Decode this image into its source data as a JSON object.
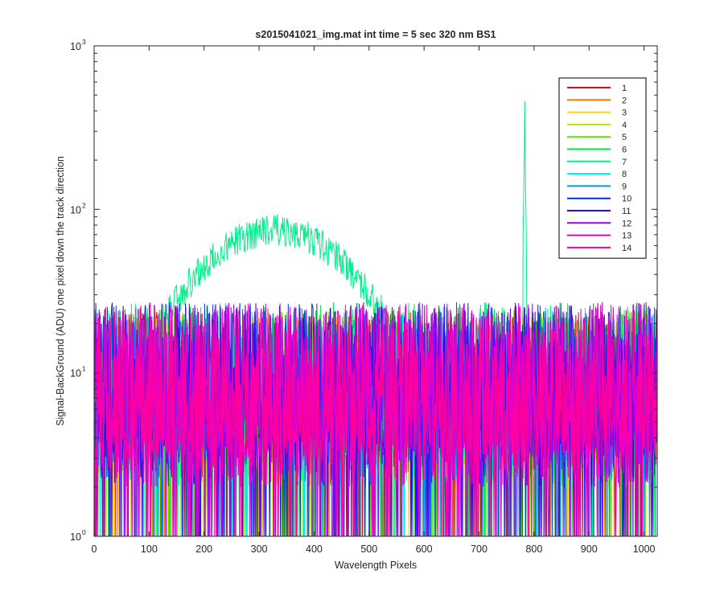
{
  "chart_data": {
    "type": "line",
    "title": "s2015041021_img.mat int time = 5 sec  320 nm BS1",
    "xlabel": "Wavelength Pixels",
    "ylabel": "Signal-BackGround (ADU) one pixel down the track direction",
    "xlim": [
      0,
      1024
    ],
    "ylim": [
      1,
      1000
    ],
    "yscale": "log",
    "grid": false,
    "legend_position": "top-right",
    "xticks": [
      "0",
      "100",
      "200",
      "300",
      "400",
      "500",
      "600",
      "700",
      "800",
      "900",
      "1000"
    ],
    "xtick_values": [
      0,
      100,
      200,
      300,
      400,
      500,
      600,
      700,
      800,
      900,
      1000
    ],
    "ytick_values": [
      1,
      10,
      100,
      1000
    ],
    "ytick_base": "10",
    "ytick_exponents": [
      "0",
      "1",
      "2",
      "3"
    ],
    "series": [
      {
        "name": "1",
        "color": "#e6001a",
        "level": 8
      },
      {
        "name": "2",
        "color": "#ff7a00",
        "level": 8
      },
      {
        "name": "3",
        "color": "#ffd400",
        "level": 8
      },
      {
        "name": "4",
        "color": "#b8e600",
        "level": 8
      },
      {
        "name": "5",
        "color": "#5fe600",
        "level": 8
      },
      {
        "name": "6",
        "color": "#00e64a",
        "level": 9
      },
      {
        "name": "7",
        "color": "#00f08c",
        "level": 9,
        "hump_peak": 75,
        "hump_center": 330,
        "hump_width": 180,
        "spike_x": 783,
        "spike_peak": 460
      },
      {
        "name": "8",
        "color": "#00f0e6",
        "level": 8
      },
      {
        "name": "9",
        "color": "#0096e6",
        "level": 8
      },
      {
        "name": "10",
        "color": "#0030e6",
        "level": 9
      },
      {
        "name": "11",
        "color": "#3c00e6",
        "level": 9
      },
      {
        "name": "12",
        "color": "#9a00e6",
        "level": 9
      },
      {
        "name": "13",
        "color": "#e600c8",
        "level": 9
      },
      {
        "name": "14",
        "color": "#ff00a0",
        "level": 9
      }
    ]
  }
}
